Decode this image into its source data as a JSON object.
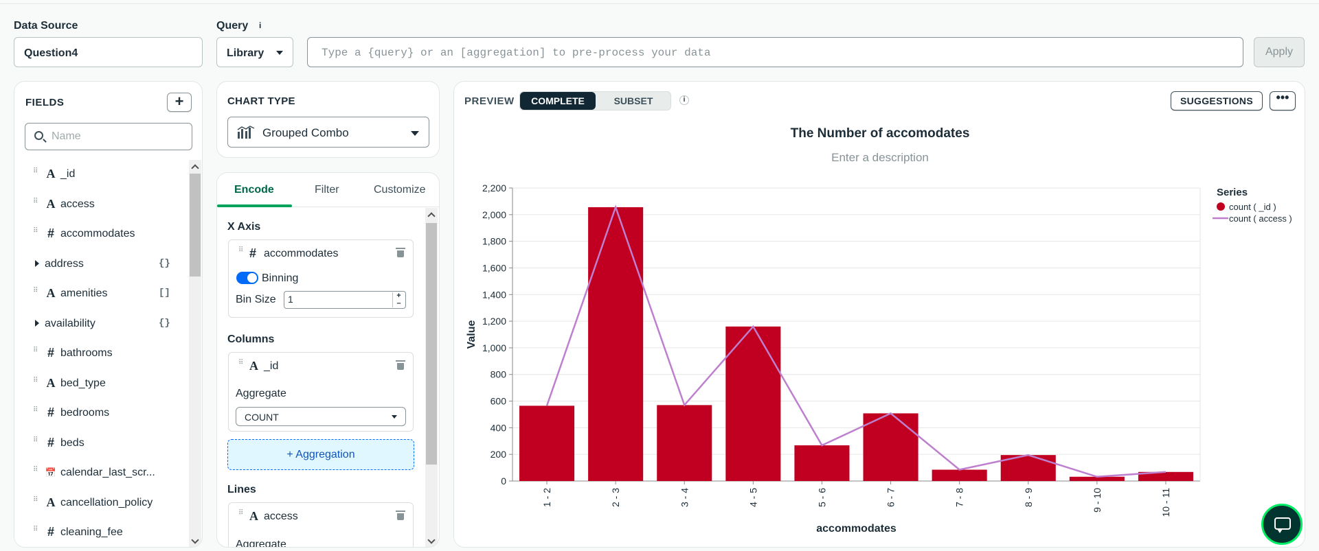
{
  "header": {
    "data_source_label": "Data Source",
    "data_source_value": "Question4",
    "query_label": "Query",
    "query_info": "i",
    "library_label": "Library",
    "query_placeholder": "Type a {query} or an [aggregation] to pre-process your data",
    "apply_label": "Apply"
  },
  "fields": {
    "title": "FIELDS",
    "add_label": "+",
    "search_placeholder": "Name",
    "items": [
      {
        "type": "A",
        "name": "_id",
        "suffix": ""
      },
      {
        "type": "A",
        "name": "access",
        "suffix": ""
      },
      {
        "type": "#",
        "name": "accommodates",
        "suffix": ""
      },
      {
        "type": "obj",
        "name": "address",
        "suffix": "{}"
      },
      {
        "type": "A",
        "name": "amenities",
        "suffix": "[]"
      },
      {
        "type": "obj",
        "name": "availability",
        "suffix": "{}"
      },
      {
        "type": "#",
        "name": "bathrooms",
        "suffix": ""
      },
      {
        "type": "A",
        "name": "bed_type",
        "suffix": ""
      },
      {
        "type": "#",
        "name": "bedrooms",
        "suffix": ""
      },
      {
        "type": "#",
        "name": "beds",
        "suffix": ""
      },
      {
        "type": "date",
        "name": "calendar_last_scr...",
        "suffix": ""
      },
      {
        "type": "A",
        "name": "cancellation_policy",
        "suffix": ""
      },
      {
        "type": "#",
        "name": "cleaning_fee",
        "suffix": ""
      }
    ]
  },
  "chart_type": {
    "title": "CHART TYPE",
    "selected": "Grouped Combo"
  },
  "encode": {
    "tabs": [
      "Encode",
      "Filter",
      "Customize"
    ],
    "x_axis_label": "X Axis",
    "x_field": {
      "type": "#",
      "name": "accommodates"
    },
    "binning_label": "Binning",
    "bin_size_label": "Bin Size",
    "bin_size_value": "1",
    "columns_label": "Columns",
    "col_field": {
      "type": "A",
      "name": "_id"
    },
    "aggregate_label": "Aggregate",
    "aggregate_value": "COUNT",
    "add_aggregation": "+ Aggregation",
    "lines_label": "Lines",
    "line_field": {
      "type": "A",
      "name": "access"
    },
    "line_aggregate_label": "Aggregate"
  },
  "preview": {
    "label": "PREVIEW",
    "mode_complete": "COMPLETE",
    "mode_subset": "SUBSET",
    "info": "i",
    "suggestions": "SUGGESTIONS",
    "more": "•••",
    "title": "The Number of accomodates",
    "description": "Enter a description"
  },
  "colors": {
    "bar": "#c10021",
    "line": "#be7fce",
    "accent_green": "#00a35c",
    "dark_navy": "#112733"
  },
  "chart_data": {
    "type": "bar",
    "title": "The Number of accomodates",
    "xlabel": "accommodates",
    "ylabel": "Value",
    "categories": [
      "1 - 2",
      "2 - 3",
      "3 - 4",
      "4 - 5",
      "5 - 6",
      "6 - 7",
      "7 - 8",
      "8 - 9",
      "9 - 10",
      "10 - 11"
    ],
    "series": [
      {
        "name": "count ( _id )",
        "kind": "bar",
        "values": [
          565,
          2056,
          570,
          1160,
          268,
          508,
          85,
          195,
          32,
          68
        ]
      },
      {
        "name": "count ( access )",
        "kind": "line",
        "values": [
          565,
          2056,
          570,
          1160,
          268,
          508,
          85,
          195,
          32,
          68
        ]
      }
    ],
    "yticks": [
      "0",
      "200",
      "400",
      "600",
      "800",
      "1,000",
      "1,200",
      "1,400",
      "1,600",
      "1,800",
      "2,000",
      "2,200"
    ],
    "ylim": [
      0,
      2200
    ],
    "legend_title": "Series",
    "legend_position": "top-right"
  }
}
